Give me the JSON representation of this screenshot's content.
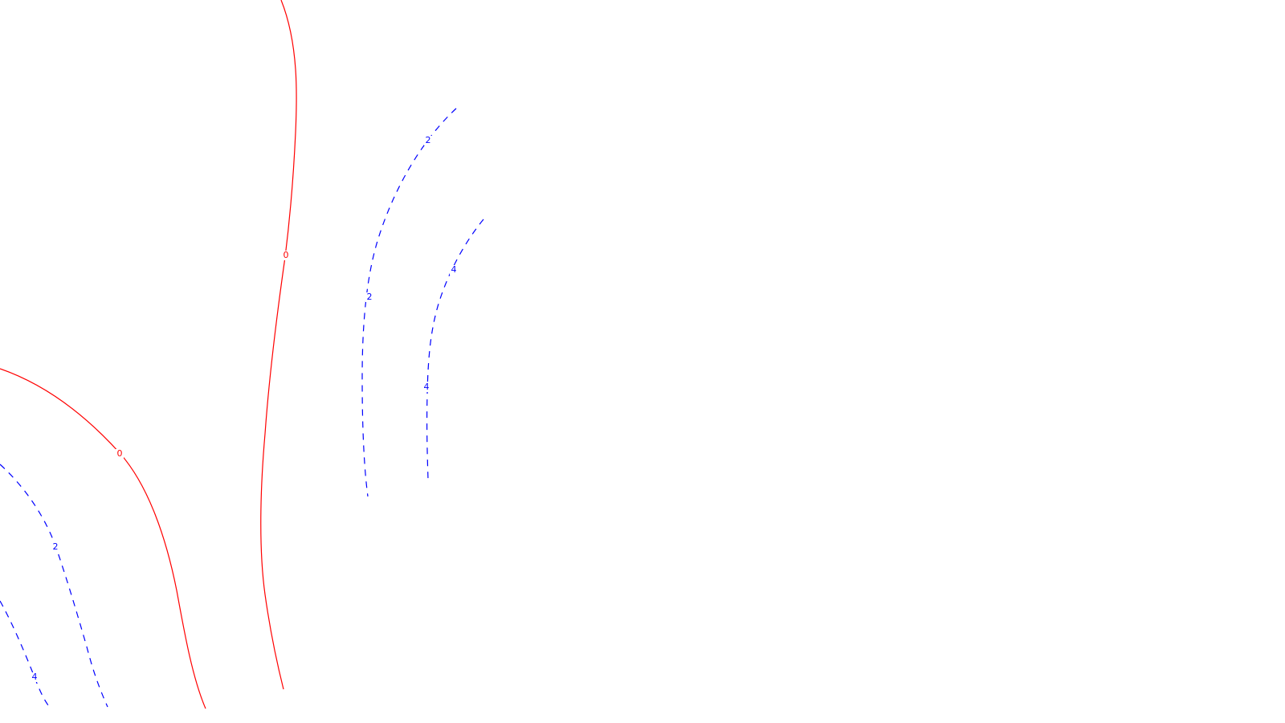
{
  "chart_data": {
    "type": "contour",
    "title": "",
    "xlabel": "",
    "ylabel": "",
    "grid": false,
    "legend": "none",
    "colors": {
      "zero_level": "#ff0000",
      "positive_level": "#0000ff",
      "background": "#ffffff"
    },
    "levels": [
      {
        "id": "upper-zero",
        "value": 0,
        "label": "0",
        "style": "solid",
        "color": "#ff0000"
      },
      {
        "id": "lower-left-zero",
        "value": 0,
        "label": "0",
        "style": "solid",
        "color": "#ff0000"
      },
      {
        "id": "center-two",
        "value": 2,
        "label": "2",
        "style": "dashed",
        "color": "#0000ff"
      },
      {
        "id": "center-four",
        "value": 4,
        "label": "4",
        "style": "dashed",
        "color": "#0000ff"
      },
      {
        "id": "lower-left-two",
        "value": 2,
        "label": "2",
        "style": "dashed",
        "color": "#0000ff"
      },
      {
        "id": "lower-left-four",
        "value": 4,
        "label": "4",
        "style": "dashed",
        "color": "#0000ff"
      }
    ]
  }
}
